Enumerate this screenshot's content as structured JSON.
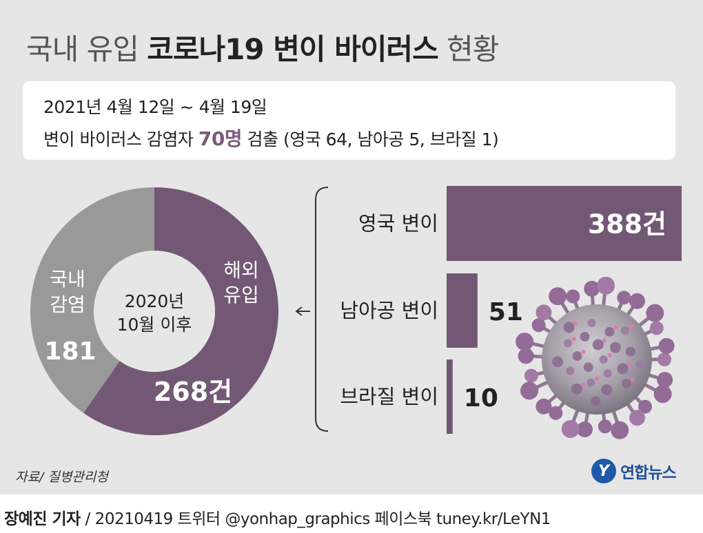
{
  "header": {
    "title_pre": "국내 유입 ",
    "title_main": "코로나19 변이 바이러스",
    "title_post": " 현황"
  },
  "info": {
    "line1": "2021년 4월 12일 ~ 4월 19일",
    "line2_pre": "변이 바이러스 감염자 ",
    "line2_highlight": "70명",
    "line2_post": " 검출 (영국 64, 남아공 5, 브라질 1)"
  },
  "colors": {
    "purple": "#735875",
    "gray": "#999999",
    "inner": "#e6e6e6",
    "bracket": "#333333",
    "highlight": "#7a5b7c"
  },
  "icons": [
    "coronavirus-icon",
    "arrow-left-icon",
    "yonhap-logo-icon"
  ],
  "chart_data": [
    {
      "type": "pie",
      "center_label_line1": "2020년",
      "center_label_line2": "10월 이후",
      "slices": [
        {
          "label_line1": "해외",
          "label_line2": "유입",
          "value": 268,
          "value_label": "268건",
          "color": "#735875"
        },
        {
          "label_line1": "국내",
          "label_line2": "감염",
          "value": 181,
          "value_label": "181",
          "color": "#999999"
        }
      ]
    },
    {
      "type": "bar",
      "orientation": "horizontal",
      "categories": [
        "영국 변이",
        "남아공 변이",
        "브라질 변이"
      ],
      "values": [
        388,
        51,
        10
      ],
      "value_labels": [
        "388건",
        "51",
        "10"
      ],
      "xlim": [
        0,
        388
      ],
      "color": "#735875"
    }
  ],
  "source": "자료/ 질병관리청",
  "logo": {
    "text": "연합뉴스",
    "mark": "Y"
  },
  "footer": {
    "author": "장예진 기자",
    "rest": " / 20210419 트위터 @yonhap_graphics  페이스북 tuney.kr/LeYN1"
  }
}
